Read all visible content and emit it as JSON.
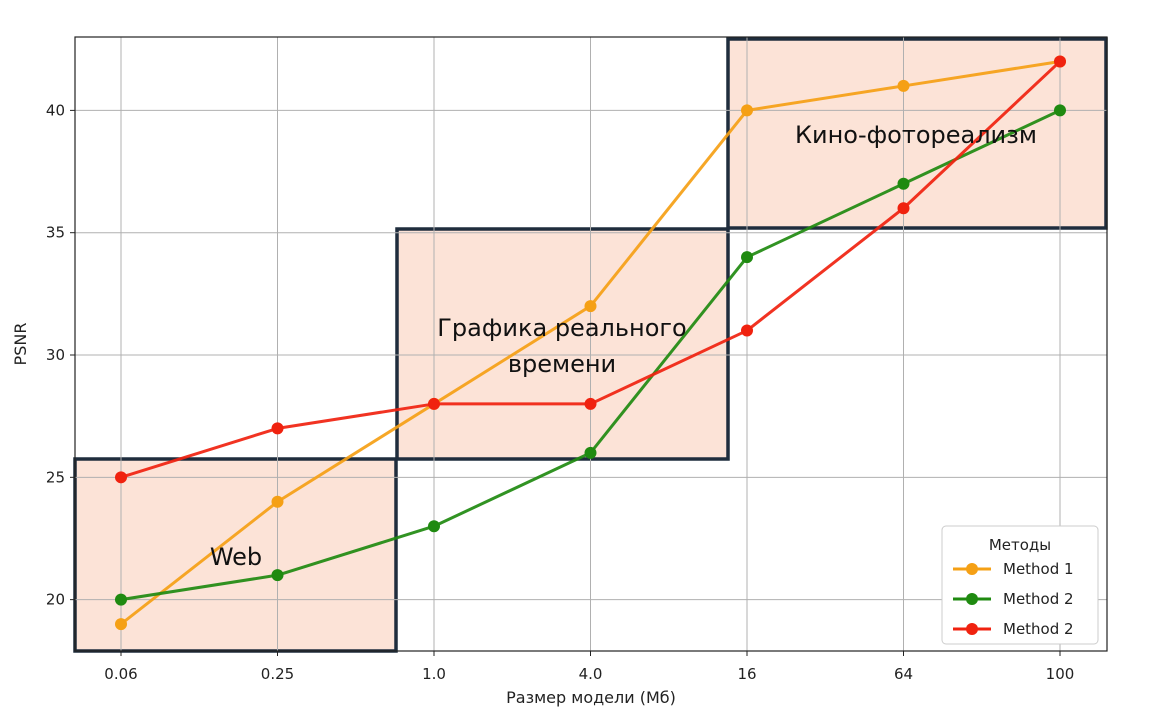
{
  "chart_data": {
    "type": "line",
    "title": "",
    "xlabel": "Размер модели (Мб)",
    "ylabel": "PSNR",
    "categories": [
      "0.06",
      "0.25",
      "1.0",
      "4.0",
      "16",
      "64",
      "100"
    ],
    "ylim": [
      17.9,
      43.0
    ],
    "yticks": [
      20,
      25,
      30,
      35,
      40
    ],
    "grid": true,
    "legend": {
      "title": "Методы",
      "position": "bottom-right"
    },
    "series": [
      {
        "name": "Method 1",
        "color": "#f5a015",
        "values": [
          19,
          24,
          28,
          32,
          40,
          41,
          42
        ]
      },
      {
        "name": "Method 2",
        "color": "#1f8a10",
        "values": [
          20,
          21,
          23,
          26,
          34,
          37,
          40
        ]
      },
      {
        "name": "Method 2",
        "color": "#f0220f",
        "values": [
          25,
          27,
          28,
          28,
          31,
          36,
          42
        ]
      }
    ],
    "regions": [
      {
        "label": "Web",
        "fill": "#fce3d7",
        "border": "#1f2d3d"
      },
      {
        "label": "Графика реального",
        "label2": "времени",
        "fill": "#fce3d7",
        "border": "#1f2d3d"
      },
      {
        "label": "Кино-фотореализм",
        "fill": "#fce3d7",
        "border": "#1f2d3d"
      }
    ]
  }
}
